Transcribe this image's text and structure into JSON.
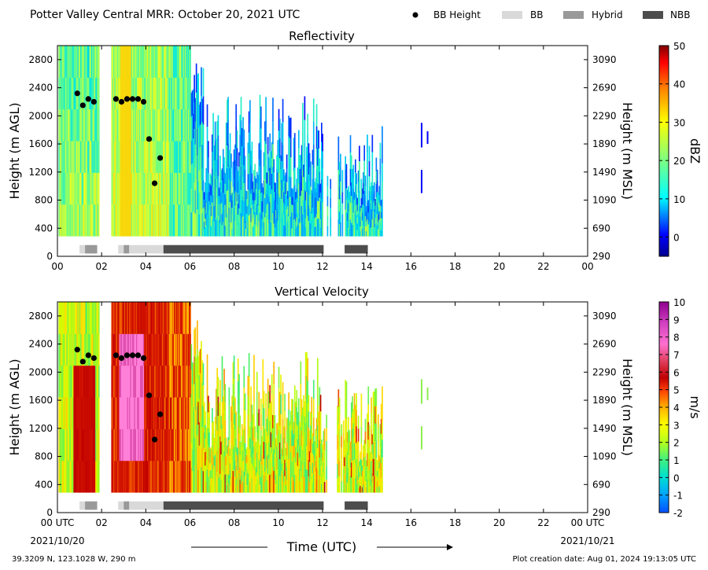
{
  "figure": {
    "title": "Potter Valley Central MRR:  October 20, 2021 UTC",
    "footer_left": "39.3209 N, 123.1028 W, 290 m",
    "footer_right": "Plot creation date: Aug 01, 2024 19:13:05 UTC",
    "xlabel": "Time (UTC)",
    "date_start": "2021/10/20",
    "date_end": "2021/10/21",
    "legend": [
      {
        "label": "BB Height",
        "kind": "dot",
        "color": "#000000"
      },
      {
        "label": "BB",
        "kind": "box",
        "color": "#d9d9d9"
      },
      {
        "label": "Hybrid",
        "kind": "box",
        "color": "#999999"
      },
      {
        "label": "NBB",
        "kind": "box",
        "color": "#4d4d4d"
      }
    ]
  },
  "chart_data": [
    {
      "type": "heatmap",
      "title": "Reflectivity",
      "ylabel": "Height (m AGL)",
      "ylabel_right": "Height (m MSL)",
      "xlim": [
        0,
        24
      ],
      "ylim": [
        0,
        3000
      ],
      "xticks": [
        "00",
        "02",
        "04",
        "06",
        "08",
        "10",
        "12",
        "14",
        "16",
        "18",
        "20",
        "22",
        "00"
      ],
      "xtick_values": [
        0,
        2,
        4,
        6,
        8,
        10,
        12,
        14,
        16,
        18,
        20,
        22,
        24
      ],
      "yticks": [
        0,
        400,
        800,
        1200,
        1600,
        2000,
        2400,
        2800
      ],
      "yticks_right": [
        290,
        690,
        1090,
        1490,
        1890,
        2290,
        2690,
        3090
      ],
      "colorbar": {
        "label": "dBZ",
        "min": -5,
        "max": 50,
        "ticks": [
          0,
          10,
          20,
          30,
          40,
          50
        ]
      },
      "bb_height": {
        "x": [
          0.9,
          1.15,
          1.4,
          1.65,
          2.65,
          2.9,
          3.15,
          3.4,
          3.65,
          3.9,
          4.15,
          4.4,
          4.65
        ],
        "y": [
          2320,
          2150,
          2240,
          2200,
          2240,
          2200,
          2240,
          2240,
          2240,
          2200,
          1670,
          1040,
          1400
        ]
      },
      "bb_type_segments": [
        {
          "start": 1.0,
          "end": 1.25,
          "class": "BB"
        },
        {
          "start": 1.25,
          "end": 1.8,
          "class": "Hybrid"
        },
        {
          "start": 2.75,
          "end": 3.0,
          "class": "BB"
        },
        {
          "start": 3.0,
          "end": 3.25,
          "class": "Hybrid"
        },
        {
          "start": 3.25,
          "end": 4.8,
          "class": "BB"
        },
        {
          "start": 4.8,
          "end": 12.05,
          "class": "NBB"
        },
        {
          "start": 13.0,
          "end": 14.05,
          "class": "NBB"
        }
      ]
    },
    {
      "type": "heatmap",
      "title": "Vertical Velocity",
      "ylabel": "Height (m AGL)",
      "ylabel_right": "Height (m MSL)",
      "xlim": [
        0,
        24
      ],
      "ylim": [
        0,
        3000
      ],
      "xticks": [
        "00 UTC",
        "02",
        "04",
        "06",
        "08",
        "10",
        "12",
        "14",
        "16",
        "18",
        "20",
        "22",
        "00 UTC"
      ],
      "xtick_values": [
        0,
        2,
        4,
        6,
        8,
        10,
        12,
        14,
        16,
        18,
        20,
        22,
        24
      ],
      "yticks": [
        0,
        400,
        800,
        1200,
        1600,
        2000,
        2400,
        2800
      ],
      "yticks_right": [
        290,
        690,
        1090,
        1490,
        1890,
        2290,
        2690,
        3090
      ],
      "colorbar": {
        "label": "m/s",
        "min": -2,
        "max": 10,
        "ticks": [
          -2,
          -1,
          0,
          1,
          2,
          3,
          4,
          5,
          6,
          7,
          8,
          9,
          10
        ]
      },
      "bb_height": {
        "x": [
          0.9,
          1.15,
          1.4,
          1.65,
          2.65,
          2.9,
          3.15,
          3.4,
          3.65,
          3.9,
          4.15,
          4.4,
          4.65
        ],
        "y": [
          2320,
          2150,
          2240,
          2200,
          2240,
          2200,
          2240,
          2240,
          2240,
          2200,
          1670,
          1040,
          1400
        ]
      },
      "bb_type_segments": [
        {
          "start": 1.0,
          "end": 1.25,
          "class": "BB"
        },
        {
          "start": 1.25,
          "end": 1.8,
          "class": "Hybrid"
        },
        {
          "start": 2.75,
          "end": 3.0,
          "class": "BB"
        },
        {
          "start": 3.0,
          "end": 3.25,
          "class": "Hybrid"
        },
        {
          "start": 3.25,
          "end": 4.8,
          "class": "BB"
        },
        {
          "start": 4.8,
          "end": 12.05,
          "class": "NBB"
        },
        {
          "start": 13.0,
          "end": 14.05,
          "class": "NBB"
        }
      ]
    }
  ]
}
